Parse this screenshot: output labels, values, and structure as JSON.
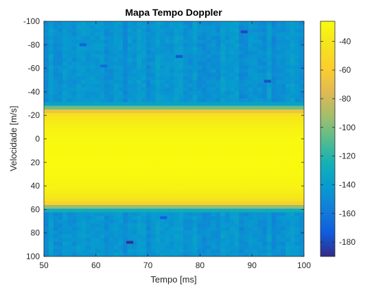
{
  "chart_data": {
    "type": "heatmap",
    "title": "Mapa Tempo Doppler",
    "xlabel": "Tempo [ms]",
    "ylabel": "Velocidade [m/s]",
    "xlim": [
      50,
      100
    ],
    "ylim": [
      -100,
      100
    ],
    "y_direction": "reverse",
    "x_ticks": [
      50,
      60,
      70,
      80,
      90,
      100
    ],
    "y_ticks": [
      -100,
      -80,
      -60,
      -40,
      -20,
      0,
      20,
      40,
      60,
      80,
      100
    ],
    "colorbar": {
      "colormap": "parula",
      "clim": [
        -190,
        -26
      ],
      "ticks": [
        -40,
        -60,
        -80,
        -100,
        -120,
        -140,
        -160,
        -180
      ]
    },
    "signal_band": {
      "velocity_range": [
        -30,
        62
      ],
      "peak_level": -27,
      "shoulder_level": -60,
      "floor_level": -145
    },
    "dark_spots": [
      {
        "time": 57.5,
        "velocity": -80,
        "level": -170
      },
      {
        "time": 61.5,
        "velocity": -62,
        "level": -165
      },
      {
        "time": 76,
        "velocity": -70,
        "level": -175
      },
      {
        "time": 88.5,
        "velocity": -91,
        "level": -180
      },
      {
        "time": 93,
        "velocity": -49,
        "level": -178
      },
      {
        "time": 73,
        "velocity": 67,
        "level": -172
      },
      {
        "time": 66.5,
        "velocity": 88,
        "level": -188
      }
    ]
  }
}
